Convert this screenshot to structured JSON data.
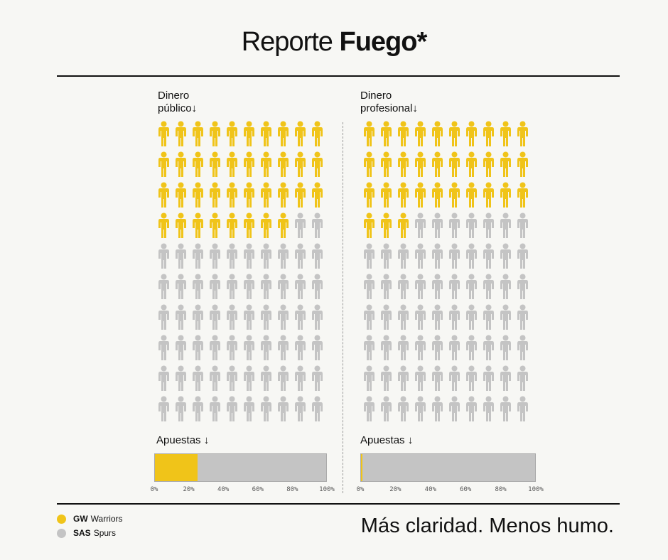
{
  "title": {
    "light": "Reporte ",
    "bold": "Fuego*"
  },
  "colors": {
    "warriors": "#f0c419",
    "spurs": "#c4c4c4"
  },
  "tagline": "Más claridad. Menos humo.",
  "legend": [
    {
      "abbr": "GW",
      "team": "Warriors",
      "color": "#f0c419"
    },
    {
      "abbr": "SAS",
      "team": "Spurs",
      "color": "#c4c4c4"
    }
  ],
  "chart_data": [
    {
      "type": "waffle",
      "label_line1": "Dinero",
      "label_line2": "público↓",
      "rows": 10,
      "cols": 10,
      "filled_warriors": 38,
      "bet_label": "Apuestas ↓",
      "bet_warriors_pct": 25,
      "ticks": [
        "0%",
        "20%",
        "40%",
        "60%",
        "80%",
        "100%"
      ]
    },
    {
      "type": "waffle",
      "label_line1": "Dinero",
      "label_line2": "profesional↓",
      "rows": 10,
      "cols": 10,
      "filled_warriors": 33,
      "bet_label": "Apuestas ↓",
      "bet_warriors_pct": 1,
      "ticks": [
        "0%",
        "20%",
        "40%",
        "60%",
        "80%",
        "100%"
      ]
    }
  ]
}
